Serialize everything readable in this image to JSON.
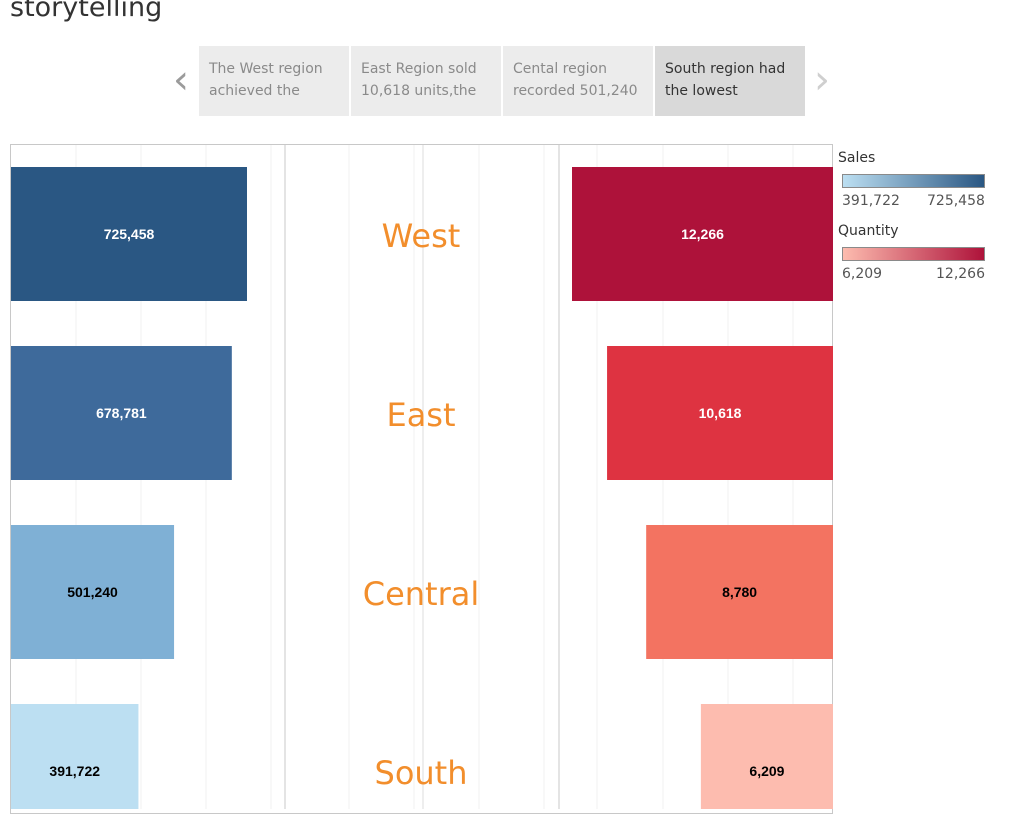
{
  "header": {
    "title": "storytelling"
  },
  "story_points": [
    {
      "text": "The West region achieved the",
      "active": false
    },
    {
      "text": "East Region sold 10,618 units,the",
      "active": false
    },
    {
      "text": "Cental region recorded 501,240",
      "active": false
    },
    {
      "text": "South region had the lowest",
      "active": true
    }
  ],
  "nav": {
    "prev_icon": "chevron-left-icon",
    "next_icon": "chevron-right-icon",
    "prev_glyph": "‹",
    "next_glyph": "›"
  },
  "legend": {
    "sales": {
      "title": "Sales",
      "min": "391,722",
      "max": "725,458",
      "color_low": "#bcdff2",
      "color_high": "#2a5783"
    },
    "quantity": {
      "title": "Quantity",
      "min": "6,209",
      "max": "12,266",
      "color_low": "#fdbcaf",
      "color_high": "#ae123a"
    }
  },
  "chart_data": {
    "type": "bar",
    "categories": [
      "West",
      "East",
      "Central",
      "South"
    ],
    "series": [
      {
        "name": "Sales",
        "values": [
          725458,
          678781,
          501240,
          391722
        ],
        "labels": [
          "725,458",
          "678,781",
          "501,240",
          "391,722"
        ],
        "colors": [
          "#2a5783",
          "#3e6a9b",
          "#7fb0d5",
          "#bcdff2"
        ],
        "label_colors": [
          "#ffffff",
          "#ffffff",
          "#000000",
          "#000000"
        ]
      },
      {
        "name": "Quantity",
        "values": [
          12266,
          10618,
          8780,
          6209
        ],
        "labels": [
          "12,266",
          "10,618",
          "8,780",
          "6,209"
        ],
        "colors": [
          "#ae123a",
          "#de3341",
          "#f37361",
          "#fdbcaf"
        ],
        "label_colors": [
          "#ffffff",
          "#ffffff",
          "#000000",
          "#000000"
        ]
      }
    ],
    "category_label_color": "#f28e2c"
  }
}
